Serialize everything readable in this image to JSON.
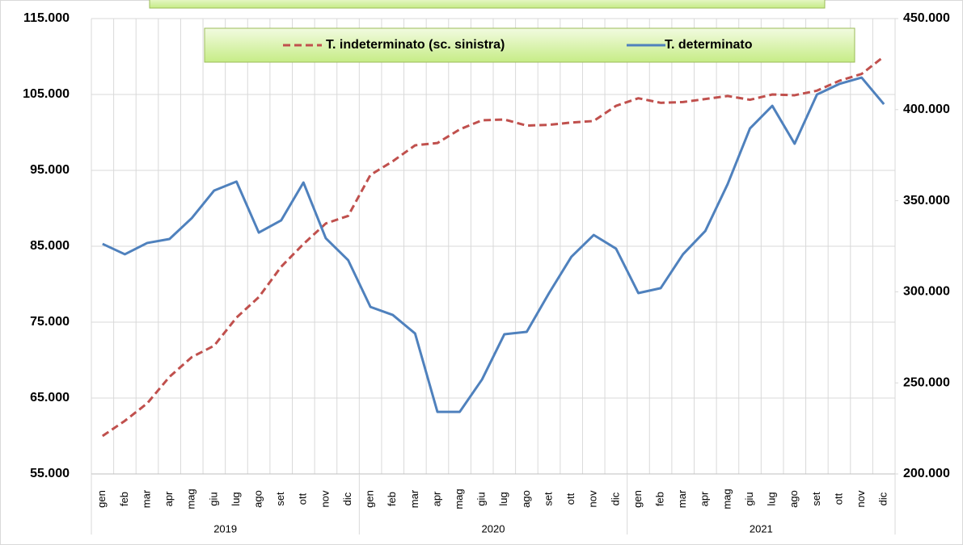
{
  "chart_data": {
    "type": "line",
    "categories": [
      "gen",
      "feb",
      "mar",
      "apr",
      "mag",
      "giu",
      "lug",
      "ago",
      "set",
      "ott",
      "nov",
      "dic",
      "gen",
      "feb",
      "mar",
      "apr",
      "mag",
      "giu",
      "lug",
      "ago",
      "set",
      "ott",
      "nov",
      "dic",
      "gen",
      "feb",
      "mar",
      "apr",
      "mag",
      "giu",
      "lug",
      "ago",
      "set",
      "ott",
      "nov",
      "dic"
    ],
    "groups": [
      "2019",
      "2020",
      "2021"
    ],
    "series": [
      {
        "name": "T. indeterminato (sc. sinistra)",
        "color": "#c0504d",
        "dashed": true,
        "values": [
          60000,
          62000,
          64300,
          67800,
          70400,
          71900,
          75600,
          78300,
          82300,
          85300,
          88000,
          89000,
          94400,
          96200,
          98300,
          98600,
          100400,
          101600,
          101700,
          100900,
          101000,
          101300,
          101500,
          103500,
          104500,
          103900,
          104000,
          104400,
          104800,
          104300,
          105000,
          104900,
          105500,
          106800,
          107700,
          110000
        ]
      },
      {
        "name": "T. determinato",
        "color": "#4f81bd",
        "axis": "y2",
        "values": [
          326300,
          320600,
          326800,
          329000,
          340500,
          355600,
          360500,
          332500,
          339200,
          360000,
          329400,
          317400,
          291700,
          287300,
          277100,
          234100,
          234100,
          251900,
          276700,
          278000,
          299300,
          319200,
          331200,
          323700,
          299300,
          302000,
          320600,
          333400,
          359100,
          389700,
          402100,
          381300,
          408300,
          414100,
          417600,
          403000
        ]
      }
    ],
    "ylim": [
      55000,
      115000
    ],
    "yticks": [
      {
        "value": 55000,
        "label": "55.000"
      },
      {
        "value": 65000,
        "label": "65.000"
      },
      {
        "value": 75000,
        "label": "75.000"
      },
      {
        "value": 85000,
        "label": "85.000"
      },
      {
        "value": 95000,
        "label": "95.000"
      },
      {
        "value": 105000,
        "label": "105.000"
      },
      {
        "value": 115000,
        "label": "115.000"
      }
    ],
    "y2lim": [
      200000,
      450000
    ],
    "y2ticks": [
      {
        "value": 200000,
        "label": "200.000"
      },
      {
        "value": 250000,
        "label": "250.000"
      },
      {
        "value": 300000,
        "label": "300.000"
      },
      {
        "value": 350000,
        "label": "350.000"
      },
      {
        "value": 400000,
        "label": "400.000"
      },
      {
        "value": 450000,
        "label": "450.000"
      }
    ],
    "grid": true,
    "legend": "top"
  }
}
